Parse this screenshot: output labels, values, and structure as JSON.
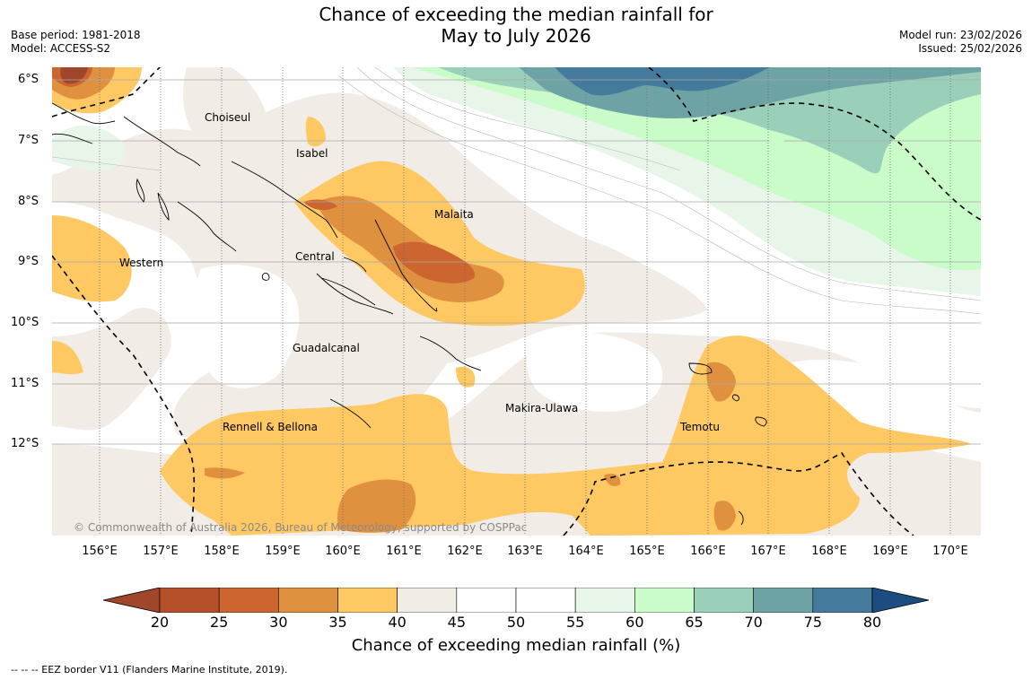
{
  "title_line1": "Chance of exceeding the median rainfall for",
  "title_line2": "May to July 2026",
  "base_period": "Base period: 1981-2018",
  "model": "Model: ACCESS-S2",
  "model_run": "Model run: 23/02/2026",
  "issued": "Issued: 25/02/2026",
  "lat_labels": [
    "6°S",
    "7°S",
    "8°S",
    "9°S",
    "10°S",
    "11°S",
    "12°S"
  ],
  "lon_labels": [
    "156°E",
    "157°E",
    "158°E",
    "159°E",
    "160°E",
    "161°E",
    "162°E",
    "163°E",
    "164°E",
    "165°E",
    "166°E",
    "167°E",
    "168°E",
    "169°E",
    "170°E"
  ],
  "regions": {
    "choiseul": "Choiseul",
    "isabel": "Isabel",
    "malaita": "Malaita",
    "western": "Western",
    "central": "Central",
    "guadalcanal": "Guadalcanal",
    "makira": "Makira-Ulawa",
    "rennell": "Rennell & Bellona",
    "temotu": "Temotu"
  },
  "copyright": "© Commonwealth of Australia 2026, Bureau of Meteorology, supported by COSPPac",
  "legend": {
    "ticks": [
      "20",
      "25",
      "30",
      "35",
      "40",
      "45",
      "50",
      "55",
      "60",
      "65",
      "70",
      "75",
      "80"
    ],
    "colors": [
      "#a0462a",
      "#b5502b",
      "#cc6530",
      "#e0913f",
      "#fec863",
      "#f1ece6",
      "#ffffff",
      "#ffffff",
      "#e8f5e9",
      "#c9fcc9",
      "#9ad0ba",
      "#6ea3a6",
      "#447a9b",
      "#1c4d80"
    ],
    "title": "Chance of exceeding median rainfall (%)"
  },
  "footnote": "--  --  -- EEZ border V11 (Flanders Marine Institute, 2019)."
}
